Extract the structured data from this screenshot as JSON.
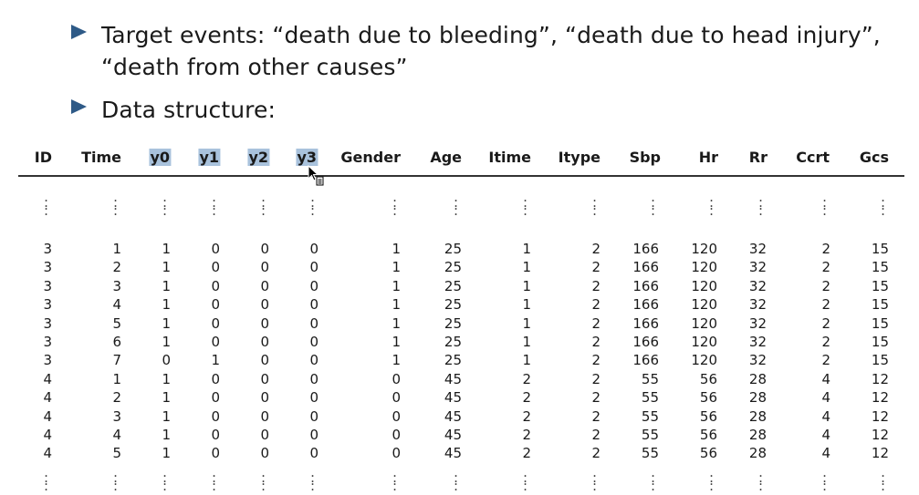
{
  "bullets": [
    {
      "line1": "Target events: “death due to bleeding”, “death due to head injury”,",
      "line2": "“death from other causes”"
    },
    {
      "line1": "Data structure:"
    }
  ],
  "table": {
    "headers": [
      "ID",
      "Time",
      "y0",
      "y1",
      "y2",
      "y3",
      "Gender",
      "Age",
      "Itime",
      "Itype",
      "Sbp",
      "Hr",
      "Rr",
      "Ccrt",
      "Gcs"
    ],
    "selected_headers": [
      "y0",
      "y1",
      "y2",
      "y3"
    ],
    "ellipsis": ":",
    "rows": [
      [
        "3",
        "1",
        "1",
        "0",
        "0",
        "0",
        "1",
        "25",
        "1",
        "2",
        "166",
        "120",
        "32",
        "2",
        "15"
      ],
      [
        "3",
        "2",
        "1",
        "0",
        "0",
        "0",
        "1",
        "25",
        "1",
        "2",
        "166",
        "120",
        "32",
        "2",
        "15"
      ],
      [
        "3",
        "3",
        "1",
        "0",
        "0",
        "0",
        "1",
        "25",
        "1",
        "2",
        "166",
        "120",
        "32",
        "2",
        "15"
      ],
      [
        "3",
        "4",
        "1",
        "0",
        "0",
        "0",
        "1",
        "25",
        "1",
        "2",
        "166",
        "120",
        "32",
        "2",
        "15"
      ],
      [
        "3",
        "5",
        "1",
        "0",
        "0",
        "0",
        "1",
        "25",
        "1",
        "2",
        "166",
        "120",
        "32",
        "2",
        "15"
      ],
      [
        "3",
        "6",
        "1",
        "0",
        "0",
        "0",
        "1",
        "25",
        "1",
        "2",
        "166",
        "120",
        "32",
        "2",
        "15"
      ],
      [
        "3",
        "7",
        "0",
        "1",
        "0",
        "0",
        "1",
        "25",
        "1",
        "2",
        "166",
        "120",
        "32",
        "2",
        "15"
      ],
      [
        "4",
        "1",
        "1",
        "0",
        "0",
        "0",
        "0",
        "45",
        "2",
        "2",
        "55",
        "56",
        "28",
        "4",
        "12"
      ],
      [
        "4",
        "2",
        "1",
        "0",
        "0",
        "0",
        "0",
        "45",
        "2",
        "2",
        "55",
        "56",
        "28",
        "4",
        "12"
      ],
      [
        "4",
        "3",
        "1",
        "0",
        "0",
        "0",
        "0",
        "45",
        "2",
        "2",
        "55",
        "56",
        "28",
        "4",
        "12"
      ],
      [
        "4",
        "4",
        "1",
        "0",
        "0",
        "0",
        "0",
        "45",
        "2",
        "2",
        "55",
        "56",
        "28",
        "4",
        "12"
      ],
      [
        "4",
        "5",
        "1",
        "0",
        "0",
        "0",
        "0",
        "45",
        "2",
        "2",
        "55",
        "56",
        "28",
        "4",
        "12"
      ]
    ]
  },
  "colors": {
    "bullet_marker": "#2e5a87",
    "selection_highlight": "#a9c2dc"
  }
}
